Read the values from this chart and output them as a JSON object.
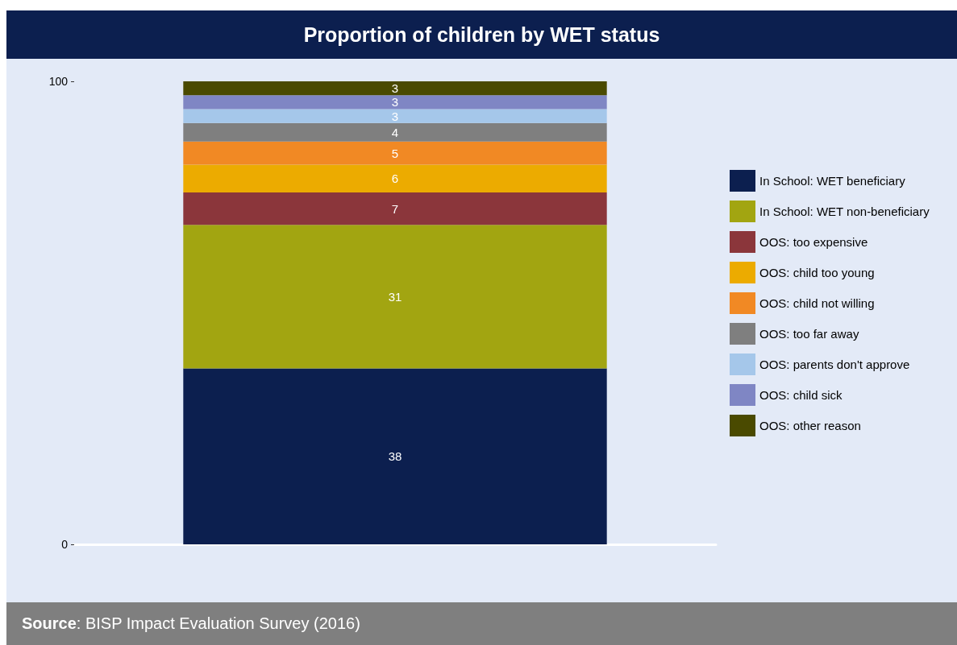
{
  "chart_data": {
    "type": "bar",
    "title": "Proportion of children by WET status",
    "stacked": true,
    "categories": [
      null
    ],
    "series": [
      {
        "name": "In School: WET beneficiary",
        "color": "#0c1f4f",
        "values": [
          38
        ]
      },
      {
        "name": "In School: WET non-beneficiary",
        "color": "#a2a511",
        "values": [
          31
        ]
      },
      {
        "name": "OOS: too expensive",
        "color": "#8b363b",
        "values": [
          7
        ]
      },
      {
        "name": "OOS: child too young",
        "color": "#ecab00",
        "values": [
          6
        ]
      },
      {
        "name": "OOS: child not willing",
        "color": "#f18924",
        "values": [
          5
        ]
      },
      {
        "name": "OOS: too far away",
        "color": "#7f7f7f",
        "values": [
          4
        ]
      },
      {
        "name": "OOS: parents don't approve",
        "color": "#a5c7ea",
        "values": [
          3
        ]
      },
      {
        "name": "OOS: child sick",
        "color": "#7f86c4",
        "values": [
          3
        ]
      },
      {
        "name": "OOS: other reason",
        "color": "#4a4a00",
        "values": [
          3
        ]
      }
    ],
    "ylim": [
      0,
      100
    ],
    "yticks": [
      0,
      100
    ],
    "grid": false,
    "legend": "right",
    "data_labels": true,
    "tick_labels": "y",
    "annotations": [
      "Source: BISP Impact Evaluation Survey (2016)"
    ]
  }
}
